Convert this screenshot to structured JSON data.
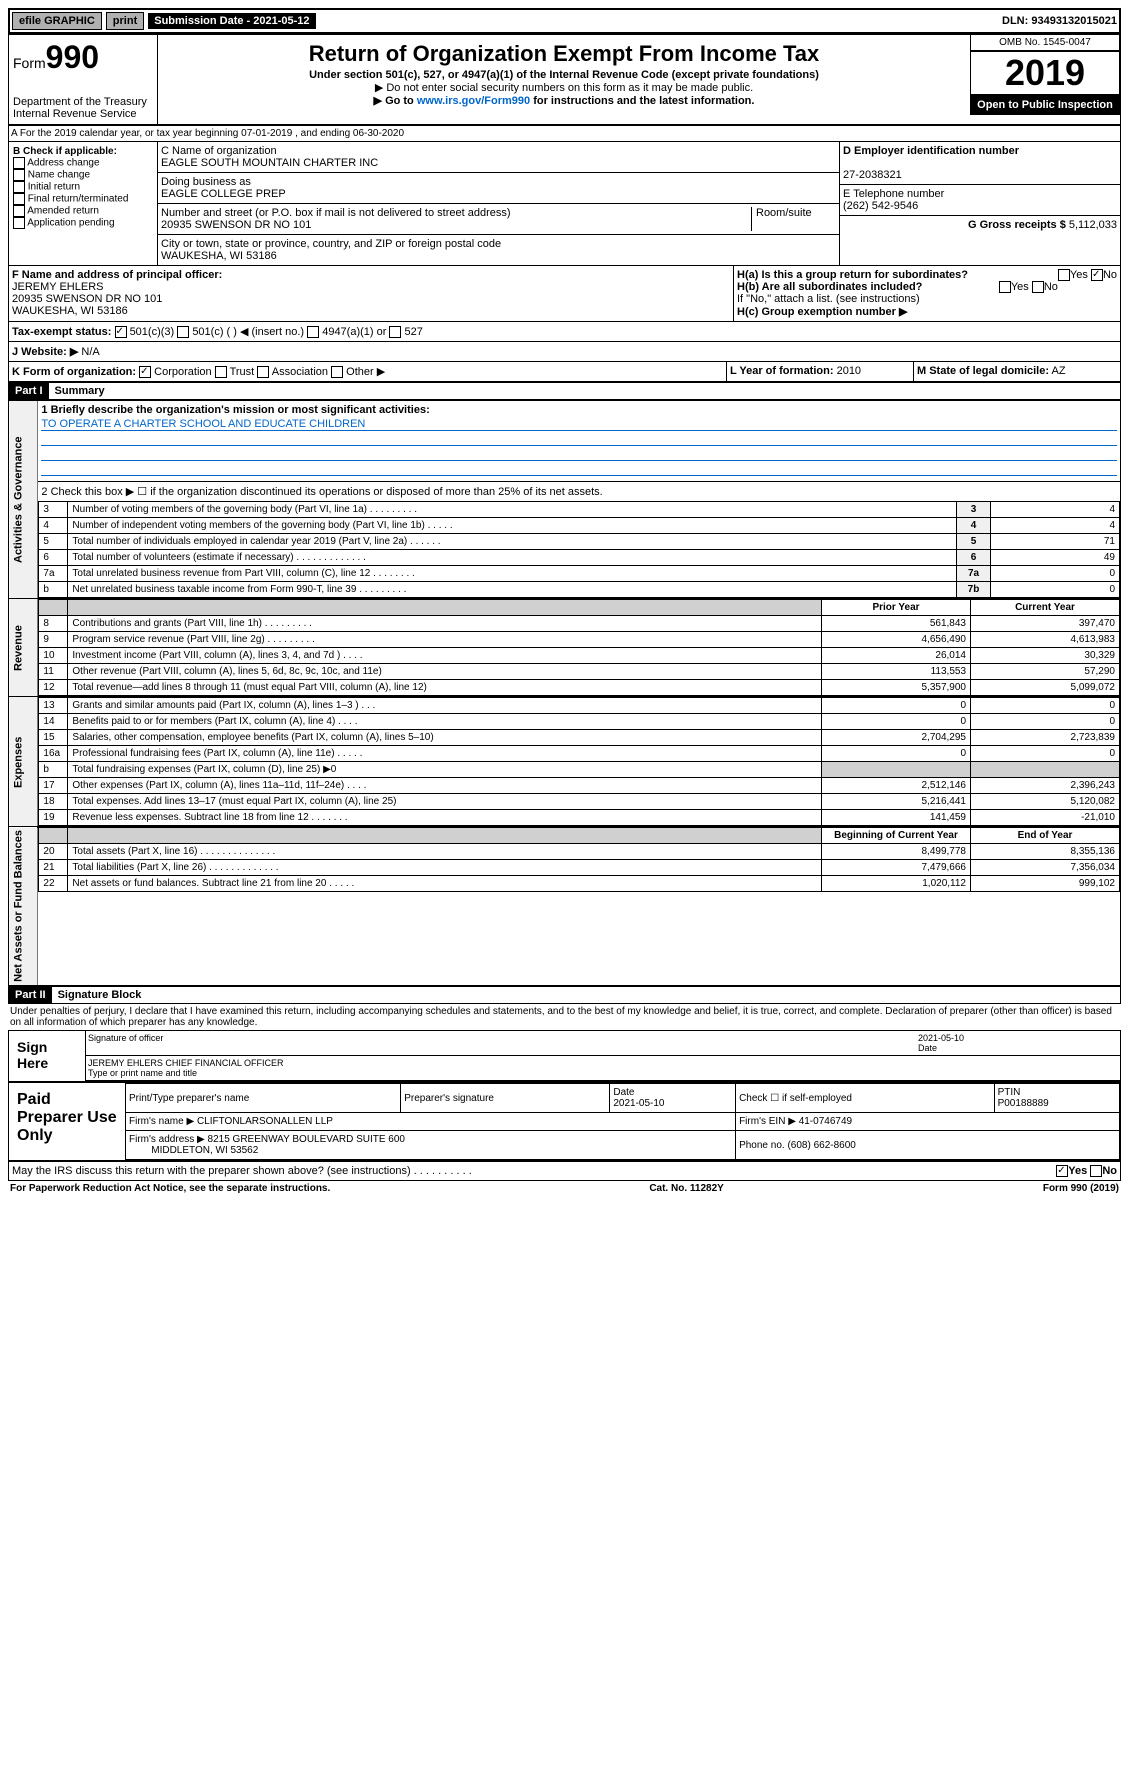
{
  "topbar": {
    "efile": "efile GRAPHIC",
    "print": "print",
    "subdate_lbl": "Submission Date - 2021-05-12",
    "dln": "DLN: 93493132015021"
  },
  "header": {
    "form": "Form",
    "num": "990",
    "dept": "Department of the Treasury",
    "irs": "Internal Revenue Service",
    "title": "Return of Organization Exempt From Income Tax",
    "sub1": "Under section 501(c), 527, or 4947(a)(1) of the Internal Revenue Code (except private foundations)",
    "sub2": "▶ Do not enter social security numbers on this form as it may be made public.",
    "sub3": "▶ Go to www.irs.gov/Form990 for instructions and the latest information.",
    "omb": "OMB No. 1545-0047",
    "year": "2019",
    "open": "Open to Public Inspection"
  },
  "a": {
    "line": "A For the 2019 calendar year, or tax year beginning 07-01-2019 , and ending 06-30-2020"
  },
  "b": {
    "lbl": "B Check if applicable:",
    "opts": [
      "Address change",
      "Name change",
      "Initial return",
      "Final return/terminated",
      "Amended return",
      "Application pending"
    ]
  },
  "c": {
    "name_lbl": "C Name of organization",
    "name": "EAGLE SOUTH MOUNTAIN CHARTER INC",
    "dba_lbl": "Doing business as",
    "dba": "EAGLE COLLEGE PREP",
    "addr_lbl": "Number and street (or P.O. box if mail is not delivered to street address)",
    "room": "Room/suite",
    "addr": "20935 SWENSON DR NO 101",
    "city_lbl": "City or town, state or province, country, and ZIP or foreign postal code",
    "city": "WAUKESHA, WI  53186"
  },
  "d": {
    "lbl": "D Employer identification number",
    "val": "27-2038321"
  },
  "e": {
    "lbl": "E Telephone number",
    "val": "(262) 542-9546"
  },
  "g": {
    "lbl": "G Gross receipts $",
    "val": "5,112,033"
  },
  "f": {
    "lbl": "F Name and address of principal officer:",
    "name": "JEREMY EHLERS",
    "addr1": "20935 SWENSON DR NO 101",
    "addr2": "WAUKESHA, WI  53186"
  },
  "h": {
    "a": "H(a) Is this a group return for subordinates?",
    "b": "H(b) Are all subordinates included?",
    "note": "If \"No,\" attach a list. (see instructions)",
    "c": "H(c) Group exemption number ▶"
  },
  "i": {
    "lbl": "Tax-exempt status:",
    "c1": "501(c)(3)",
    "c2": "501(c) ( )  ◀ (insert no.)",
    "c3": "4947(a)(1) or",
    "c4": "527"
  },
  "j": {
    "lbl": "J  Website: ▶",
    "val": "N/A"
  },
  "k": {
    "lbl": "K Form of organization:",
    "c1": "Corporation",
    "c2": "Trust",
    "c3": "Association",
    "c4": "Other ▶"
  },
  "l": {
    "lbl": "L Year of formation:",
    "val": "2010"
  },
  "m": {
    "lbl": "M State of legal domicile:",
    "val": "AZ"
  },
  "part1": {
    "hdr": "Part I",
    "title": "Summary"
  },
  "s1": {
    "q1": "1  Briefly describe the organization's mission or most significant activities:",
    "mission": "TO OPERATE A CHARTER SCHOOL AND EDUCATE CHILDREN",
    "q2": "2  Check this box ▶ ☐  if the organization discontinued its operations or disposed of more than 25% of its net assets.",
    "rows": [
      {
        "n": "3",
        "t": "Number of voting members of the governing body (Part VI, line 1a)  .  .  .  .  .  .  .  .  .",
        "l": "3",
        "v": "4"
      },
      {
        "n": "4",
        "t": "Number of independent voting members of the governing body (Part VI, line 1b)  .  .  .  .  .",
        "l": "4",
        "v": "4"
      },
      {
        "n": "5",
        "t": "Total number of individuals employed in calendar year 2019 (Part V, line 2a)  .  .  .  .  .  .",
        "l": "5",
        "v": "71"
      },
      {
        "n": "6",
        "t": "Total number of volunteers (estimate if necessary)  .  .  .  .  .  .  .  .  .  .  .  .  .",
        "l": "6",
        "v": "49"
      },
      {
        "n": "7a",
        "t": "Total unrelated business revenue from Part VIII, column (C), line 12  .  .  .  .  .  .  .  .",
        "l": "7a",
        "v": "0"
      },
      {
        "n": "b",
        "t": "Net unrelated business taxable income from Form 990-T, line 39  .  .  .  .  .  .  .  .  .",
        "l": "7b",
        "v": "0"
      }
    ]
  },
  "rev": {
    "hdr_prior": "Prior Year",
    "hdr_curr": "Current Year",
    "rows": [
      {
        "n": "8",
        "t": "Contributions and grants (Part VIII, line 1h)  .  .  .  .  .  .  .  .  .",
        "p": "561,843",
        "c": "397,470"
      },
      {
        "n": "9",
        "t": "Program service revenue (Part VIII, line 2g)  .  .  .  .  .  .  .  .  .",
        "p": "4,656,490",
        "c": "4,613,983"
      },
      {
        "n": "10",
        "t": "Investment income (Part VIII, column (A), lines 3, 4, and 7d )  .  .  .  .",
        "p": "26,014",
        "c": "30,329"
      },
      {
        "n": "11",
        "t": "Other revenue (Part VIII, column (A), lines 5, 6d, 8c, 9c, 10c, and 11e)",
        "p": "113,553",
        "c": "57,290"
      },
      {
        "n": "12",
        "t": "Total revenue—add lines 8 through 11 (must equal Part VIII, column (A), line 12)",
        "p": "5,357,900",
        "c": "5,099,072"
      }
    ]
  },
  "exp": {
    "rows": [
      {
        "n": "13",
        "t": "Grants and similar amounts paid (Part IX, column (A), lines 1–3 )  .  .  .",
        "p": "0",
        "c": "0"
      },
      {
        "n": "14",
        "t": "Benefits paid to or for members (Part IX, column (A), line 4)  .  .  .  .",
        "p": "0",
        "c": "0"
      },
      {
        "n": "15",
        "t": "Salaries, other compensation, employee benefits (Part IX, column (A), lines 5–10)",
        "p": "2,704,295",
        "c": "2,723,839"
      },
      {
        "n": "16a",
        "t": "Professional fundraising fees (Part IX, column (A), line 11e)  .  .  .  .  .",
        "p": "0",
        "c": "0"
      },
      {
        "n": "b",
        "t": "Total fundraising expenses (Part IX, column (D), line 25) ▶0",
        "shade": true
      },
      {
        "n": "17",
        "t": "Other expenses (Part IX, column (A), lines 11a–11d, 11f–24e)  .  .  .  .",
        "p": "2,512,146",
        "c": "2,396,243"
      },
      {
        "n": "18",
        "t": "Total expenses. Add lines 13–17 (must equal Part IX, column (A), line 25)",
        "p": "5,216,441",
        "c": "5,120,082"
      },
      {
        "n": "19",
        "t": "Revenue less expenses. Subtract line 18 from line 12  .  .  .  .  .  .  .",
        "p": "141,459",
        "c": "-21,010"
      }
    ]
  },
  "net": {
    "hdr_b": "Beginning of Current Year",
    "hdr_e": "End of Year",
    "rows": [
      {
        "n": "20",
        "t": "Total assets (Part X, line 16)  .  .  .  .  .  .  .  .  .  .  .  .  .  .",
        "p": "8,499,778",
        "c": "8,355,136"
      },
      {
        "n": "21",
        "t": "Total liabilities (Part X, line 26)  .  .  .  .  .  .  .  .  .  .  .  .  .",
        "p": "7,479,666",
        "c": "7,356,034"
      },
      {
        "n": "22",
        "t": "Net assets or fund balances. Subtract line 21 from line 20  .  .  .  .  .",
        "p": "1,020,112",
        "c": "999,102"
      }
    ]
  },
  "sidelabels": {
    "gov": "Activities & Governance",
    "rev": "Revenue",
    "exp": "Expenses",
    "net": "Net Assets or Fund Balances"
  },
  "part2": {
    "hdr": "Part II",
    "title": "Signature Block",
    "decl": "Under penalties of perjury, I declare that I have examined this return, including accompanying schedules and statements, and to the best of my knowledge and belief, it is true, correct, and complete. Declaration of preparer (other than officer) is based on all information of which preparer has any knowledge."
  },
  "sign": {
    "here": "Sign Here",
    "sig_lbl": "Signature of officer",
    "date": "2021-05-10",
    "date_lbl": "Date",
    "name": "JEREMY EHLERS CHIEF FINANCIAL OFFICER",
    "name_lbl": "Type or print name and title"
  },
  "prep": {
    "title": "Paid Preparer Use Only",
    "h1": "Print/Type preparer's name",
    "h2": "Preparer's signature",
    "h3": "Date",
    "h3v": "2021-05-10",
    "h4": "Check ☐ if self-employed",
    "h5": "PTIN",
    "h5v": "P00188889",
    "firm_lbl": "Firm's name  ▶",
    "firm": "CLIFTONLARSONALLEN LLP",
    "ein_lbl": "Firm's EIN ▶",
    "ein": "41-0746749",
    "addr_lbl": "Firm's address ▶",
    "addr": "8215 GREENWAY BOULEVARD SUITE 600",
    "city": "MIDDLETON, WI  53562",
    "phone_lbl": "Phone no.",
    "phone": "(608) 662-8600"
  },
  "discuss": "May the IRS discuss this return with the preparer shown above? (see instructions)  .  .  .  .  .  .  .  .  .  .",
  "footer": {
    "l": "For Paperwork Reduction Act Notice, see the separate instructions.",
    "m": "Cat. No. 11282Y",
    "r": "Form 990 (2019)"
  }
}
